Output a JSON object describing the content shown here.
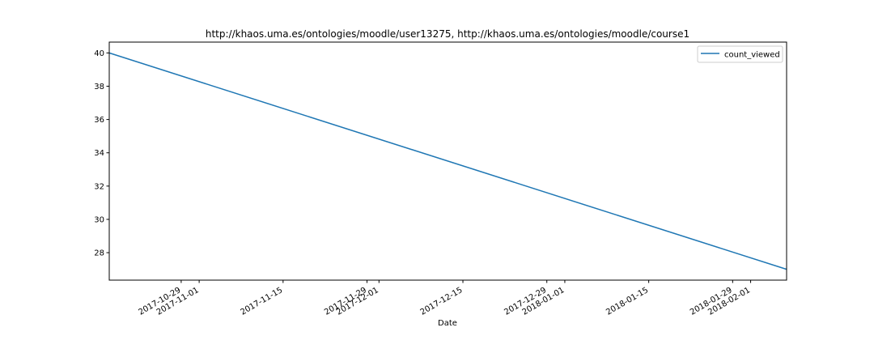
{
  "chart_data": {
    "type": "line",
    "title": "http://khaos.uma.es/ontologies/moodle/user13275, http://khaos.uma.es/ontologies/moodle/course1",
    "xlabel": "Date",
    "ylabel": "",
    "x_range": [
      "2017-10-17",
      "2018-02-07"
    ],
    "ylim": [
      26.35,
      40.65
    ],
    "x_ticks": [
      "2017-10-29",
      "2017-11-01",
      "2017-11-15",
      "2017-11-29",
      "2017-12-01",
      "2017-12-15",
      "2017-12-29",
      "2018-01-01",
      "2018-01-15",
      "2018-01-29",
      "2018-02-01"
    ],
    "y_ticks": [
      28,
      30,
      32,
      34,
      36,
      38,
      40
    ],
    "series": [
      {
        "name": "count_viewed",
        "color": "#1f77b4",
        "x": [
          "2017-10-17",
          "2018-02-07"
        ],
        "y": [
          40,
          27
        ]
      }
    ],
    "legend": {
      "placement": "upper right"
    },
    "grid": false
  }
}
